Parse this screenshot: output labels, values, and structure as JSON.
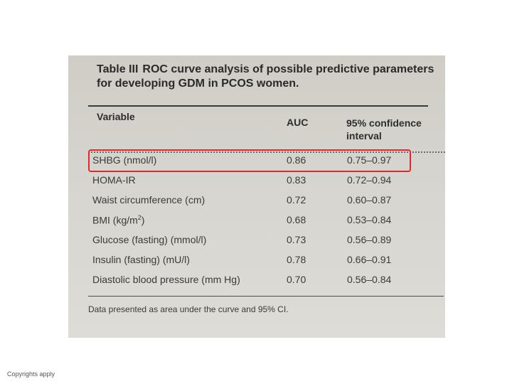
{
  "table": {
    "number": "Table III",
    "title": "ROC curve analysis of possible predictive parameters for developing GDM in PCOS women.",
    "headers": {
      "variable": "Variable",
      "auc": "AUC",
      "ci": "95% confidence interval"
    },
    "rows": [
      {
        "variable": "SHBG (nmol/l)",
        "auc": "0.86",
        "ci": "0.75–0.97",
        "highlighted": true
      },
      {
        "variable": "HOMA-IR",
        "auc": "0.83",
        "ci": "0.72–0.94"
      },
      {
        "variable": "Waist circumference (cm)",
        "auc": "0.72",
        "ci": "0.60–0.87"
      },
      {
        "variable": "BMI (kg/m",
        "sup": "2",
        "suffix": ")",
        "auc": "0.68",
        "ci": "0.53–0.84"
      },
      {
        "variable": "Glucose (fasting) (mmol/l)",
        "auc": "0.73",
        "ci": "0.56–0.89"
      },
      {
        "variable": "Insulin (fasting) (mU/l)",
        "auc": "0.78",
        "ci": "0.66–0.91"
      },
      {
        "variable": "Diastolic blood pressure (mm Hg)",
        "auc": "0.70",
        "ci": "0.56–0.84"
      }
    ],
    "footnote": "Data presented as area under the curve and 95% CI."
  },
  "highlight_color": "#e0262e",
  "copyright": "Copyrights apply"
}
